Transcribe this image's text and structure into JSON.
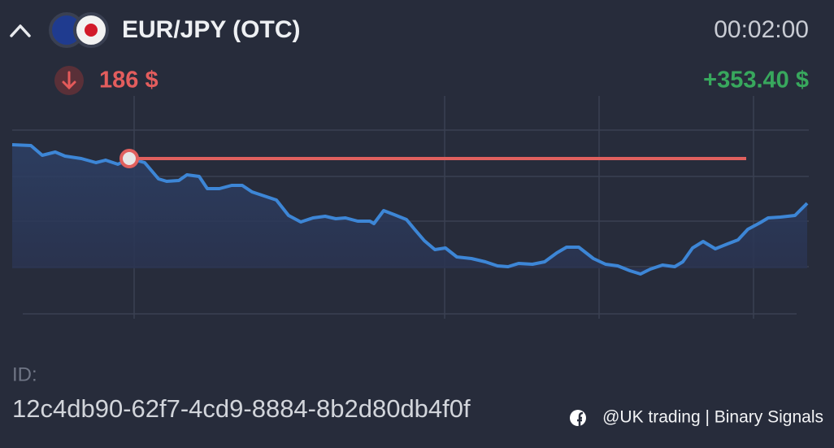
{
  "header": {
    "pair": "EUR/JPY (OTC)",
    "timer": "00:02:00"
  },
  "trade": {
    "amount": "186 $",
    "profit": "+353.40 $"
  },
  "footer": {
    "id_label": "ID:",
    "id": "12c4db90-62f7-4cd9-8884-8b2d80db4f0f",
    "watermark": "@UK trading | Binary Signals"
  }
}
